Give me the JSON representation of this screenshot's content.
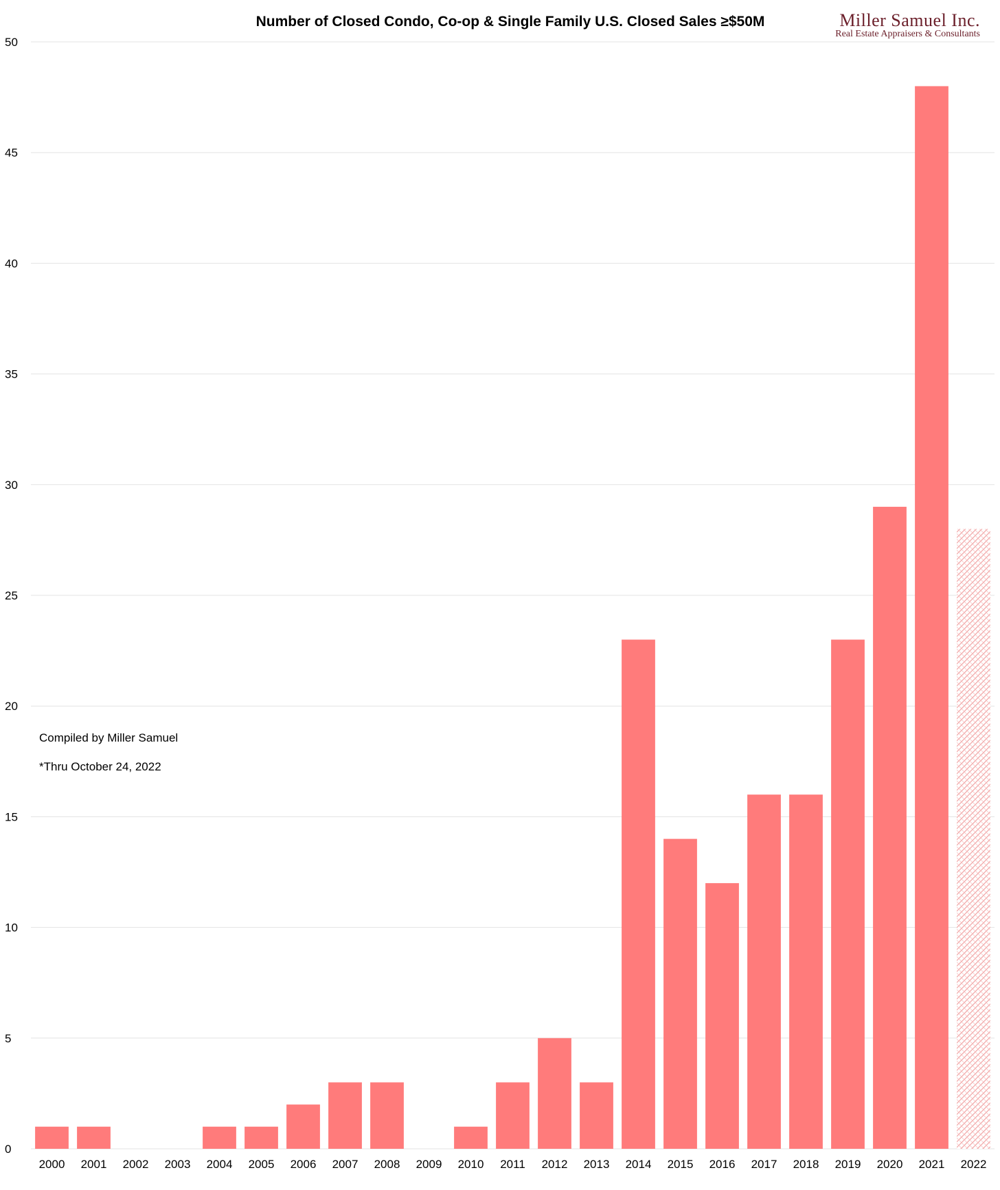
{
  "chart_data": {
    "type": "bar",
    "title": "Number of Closed Condo, Co-op & Single Family U.S. Closed Sales ≥$50M",
    "xlabel": "",
    "ylabel": "",
    "ylim": [
      0,
      50
    ],
    "yticks": [
      "0",
      "5",
      "10",
      "15",
      "20",
      "25",
      "30",
      "35",
      "40",
      "45",
      "50"
    ],
    "grid": true,
    "categories": [
      "2000",
      "2001",
      "2002",
      "2003",
      "2004",
      "2005",
      "2006",
      "2007",
      "2008",
      "2009",
      "2010",
      "2011",
      "2012",
      "2013",
      "2014",
      "2015",
      "2016",
      "2017",
      "2018",
      "2019",
      "2020",
      "2021",
      "2022"
    ],
    "values": [
      1,
      1,
      0,
      0,
      1,
      1,
      2,
      3,
      3,
      0,
      1,
      3,
      5,
      3,
      23,
      14,
      12,
      16,
      16,
      23,
      29,
      48,
      28
    ],
    "partial_category": "2022",
    "bar_color": "#ff7b7b",
    "partial_pattern_color": "#f2a6a6",
    "annotations": [
      "Compiled by Miller Samuel",
      "*Thru October 24, 2022"
    ]
  },
  "logo": {
    "name": "Miller Samuel Inc.",
    "tagline": "Real Estate Appraisers & Consultants",
    "color": "#6b1f2a"
  }
}
